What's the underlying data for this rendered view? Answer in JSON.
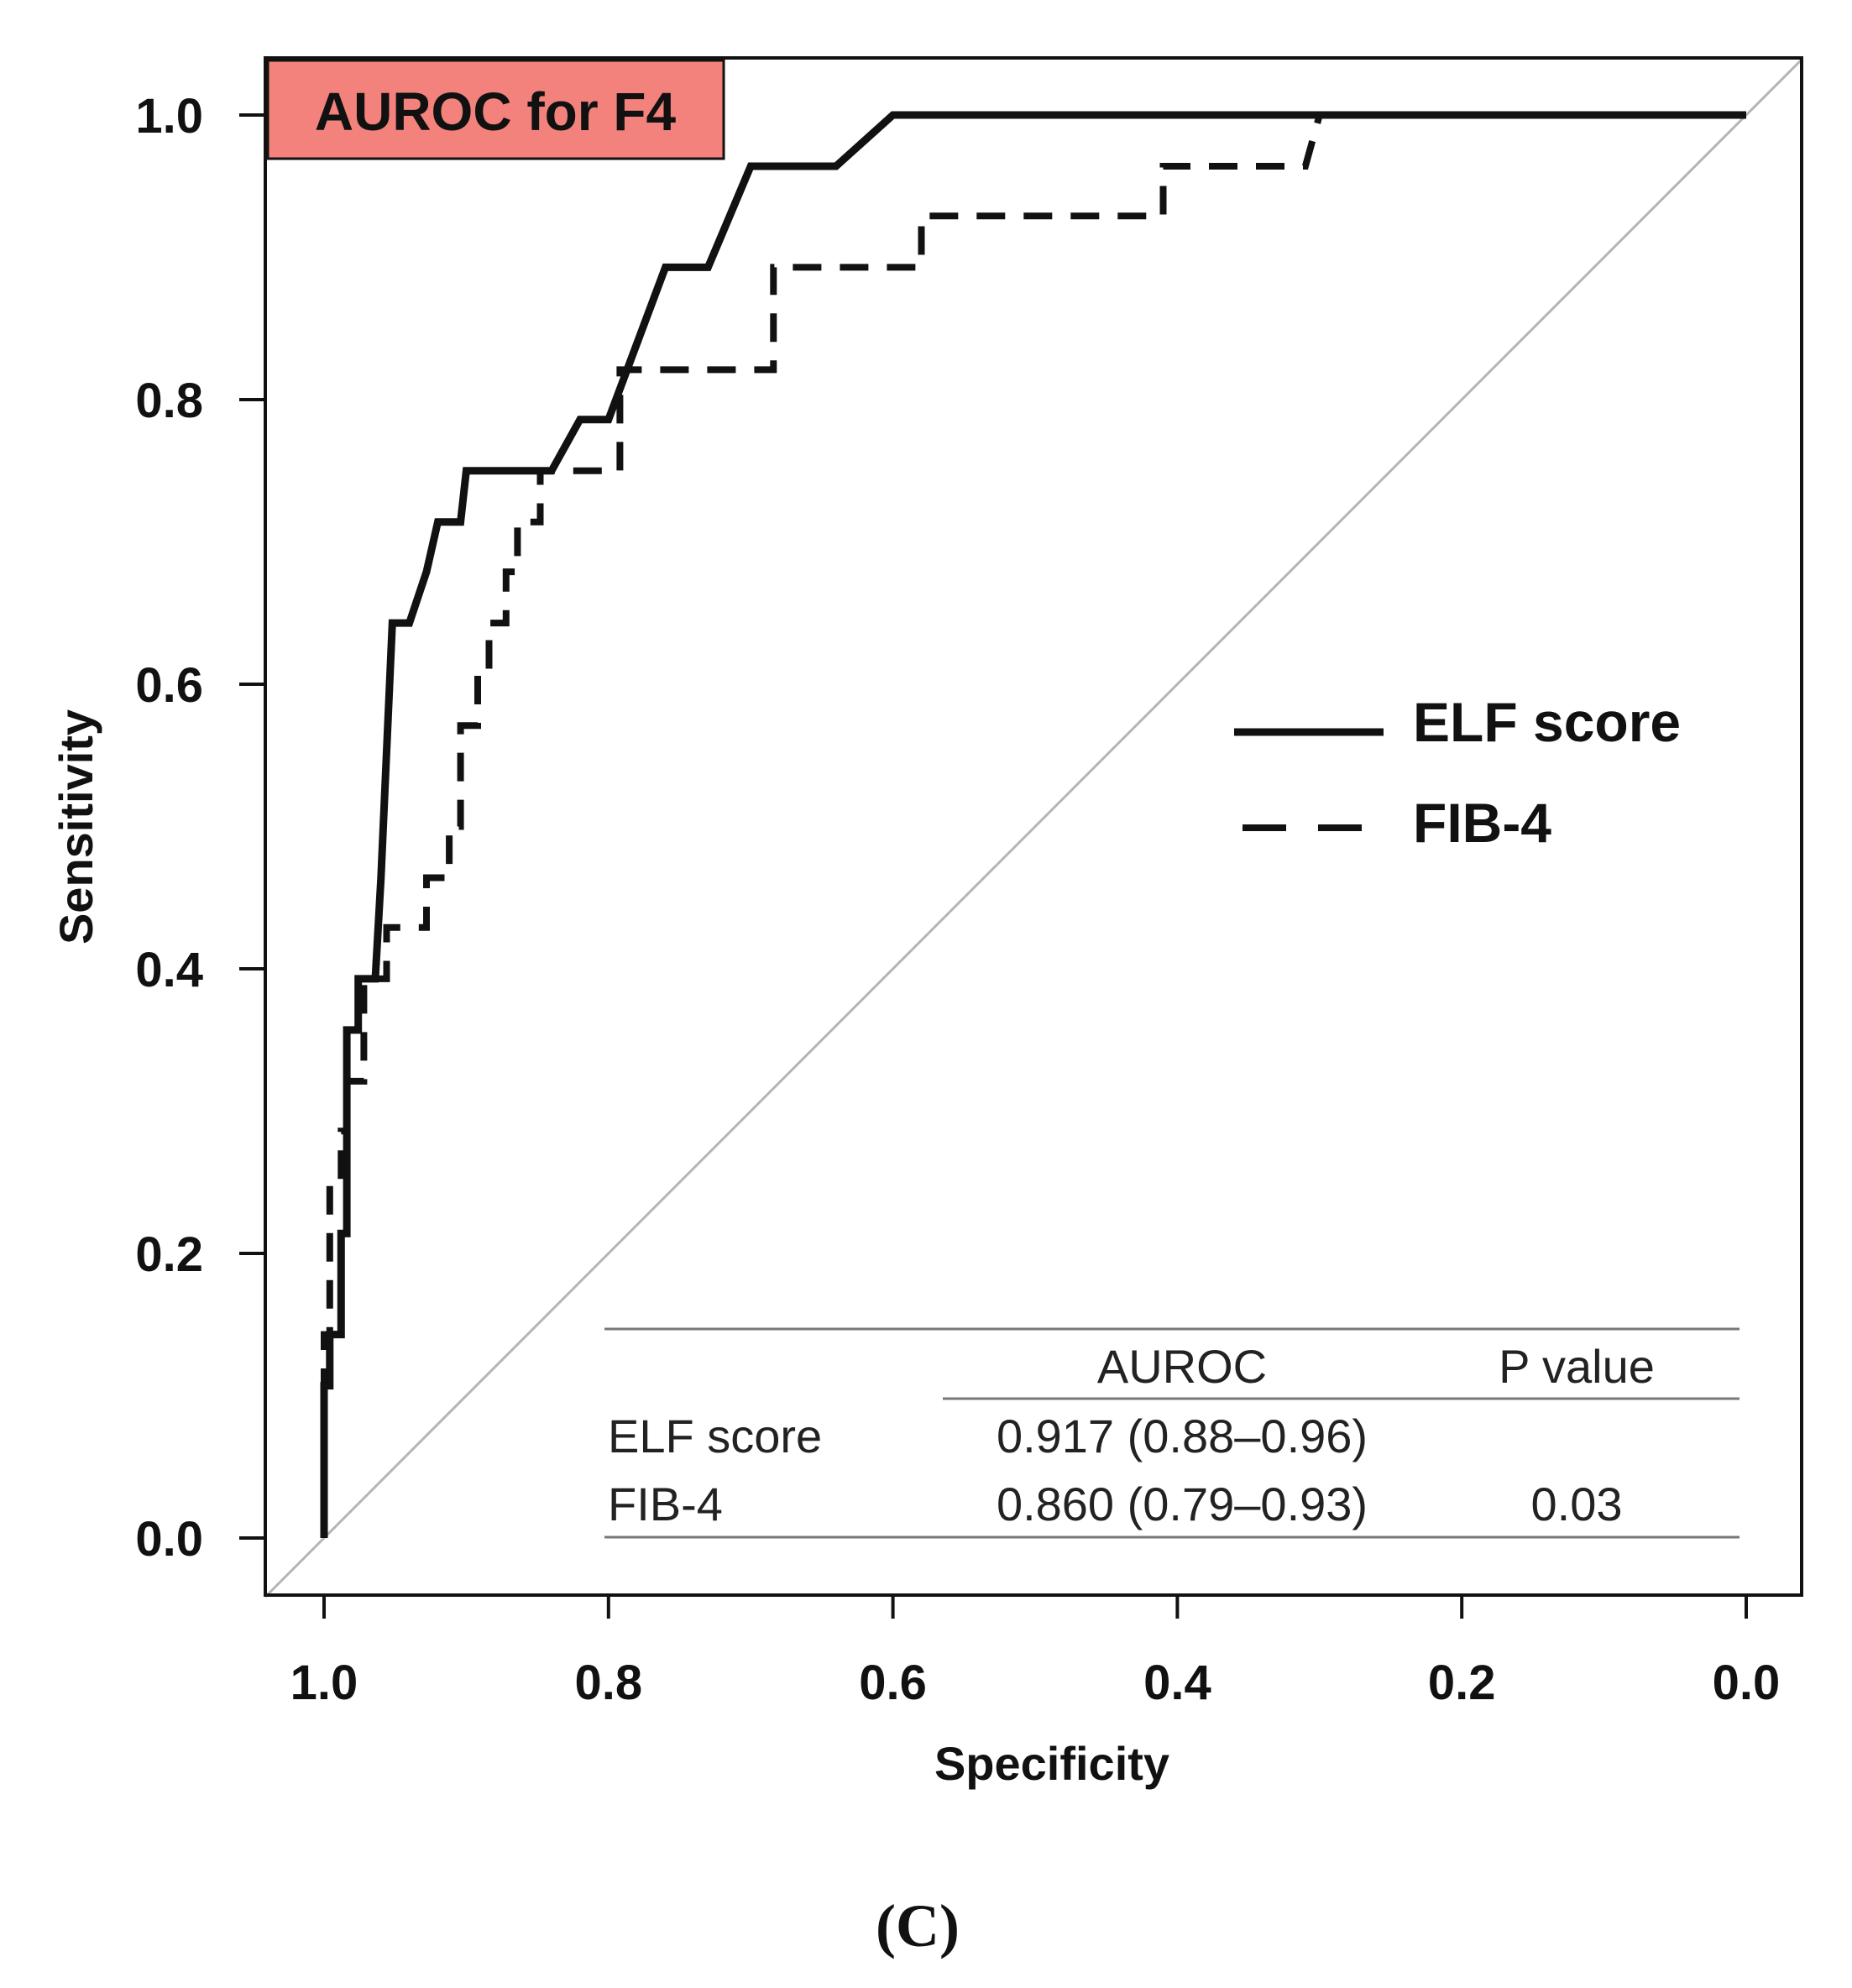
{
  "chart_data": {
    "type": "line",
    "title": "AUROC for F4",
    "xlabel": "Specificity",
    "ylabel": "Sensitivity",
    "xlim": [
      1.0,
      0.0
    ],
    "ylim": [
      0.0,
      1.0
    ],
    "x_ticks": [
      "1.0",
      "0.8",
      "0.6",
      "0.4",
      "0.2",
      "0.0"
    ],
    "y_ticks": [
      "0.0",
      "0.2",
      "0.4",
      "0.6",
      "0.8",
      "1.0"
    ],
    "reference_line": {
      "from": [
        1.0,
        0.0
      ],
      "to": [
        0.0,
        1.0
      ],
      "color": "#b5b5b5"
    },
    "series": [
      {
        "name": "ELF score",
        "style": "solid",
        "points": [
          [
            1.0,
            0.0
          ],
          [
            1.0,
            0.107
          ],
          [
            0.996,
            0.107
          ],
          [
            0.996,
            0.143
          ],
          [
            0.988,
            0.143
          ],
          [
            0.988,
            0.214
          ],
          [
            0.984,
            0.214
          ],
          [
            0.984,
            0.357
          ],
          [
            0.976,
            0.357
          ],
          [
            0.976,
            0.393
          ],
          [
            0.964,
            0.393
          ],
          [
            0.96,
            0.464
          ],
          [
            0.952,
            0.643
          ],
          [
            0.94,
            0.643
          ],
          [
            0.928,
            0.679
          ],
          [
            0.92,
            0.714
          ],
          [
            0.904,
            0.714
          ],
          [
            0.9,
            0.75
          ],
          [
            0.84,
            0.75
          ],
          [
            0.82,
            0.786
          ],
          [
            0.8,
            0.786
          ],
          [
            0.76,
            0.893
          ],
          [
            0.73,
            0.893
          ],
          [
            0.7,
            0.964
          ],
          [
            0.64,
            0.964
          ],
          [
            0.6,
            1.0
          ],
          [
            0.0,
            1.0
          ]
        ]
      },
      {
        "name": "FIB-4",
        "style": "dashed",
        "points": [
          [
            1.0,
            0.0
          ],
          [
            1.0,
            0.143
          ],
          [
            0.996,
            0.143
          ],
          [
            0.996,
            0.25
          ],
          [
            0.988,
            0.25
          ],
          [
            0.988,
            0.286
          ],
          [
            0.984,
            0.286
          ],
          [
            0.984,
            0.321
          ],
          [
            0.972,
            0.321
          ],
          [
            0.972,
            0.393
          ],
          [
            0.956,
            0.393
          ],
          [
            0.956,
            0.429
          ],
          [
            0.928,
            0.429
          ],
          [
            0.928,
            0.464
          ],
          [
            0.912,
            0.464
          ],
          [
            0.912,
            0.5
          ],
          [
            0.904,
            0.5
          ],
          [
            0.904,
            0.571
          ],
          [
            0.892,
            0.571
          ],
          [
            0.892,
            0.607
          ],
          [
            0.884,
            0.607
          ],
          [
            0.884,
            0.643
          ],
          [
            0.872,
            0.643
          ],
          [
            0.872,
            0.679
          ],
          [
            0.864,
            0.679
          ],
          [
            0.864,
            0.714
          ],
          [
            0.848,
            0.714
          ],
          [
            0.848,
            0.75
          ],
          [
            0.792,
            0.75
          ],
          [
            0.792,
            0.821
          ],
          [
            0.684,
            0.821
          ],
          [
            0.684,
            0.893
          ],
          [
            0.58,
            0.893
          ],
          [
            0.58,
            0.929
          ],
          [
            0.41,
            0.929
          ],
          [
            0.41,
            0.964
          ],
          [
            0.31,
            0.964
          ],
          [
            0.3,
            1.0
          ],
          [
            0.0,
            1.0
          ]
        ]
      }
    ],
    "legend": {
      "placement": "center-right",
      "entries": [
        "ELF score",
        "FIB-4"
      ]
    },
    "stats_table": {
      "headers": [
        "",
        "AUROC",
        "P value"
      ],
      "rows": [
        {
          "label": "ELF score",
          "auroc": "0.917 (0.88–0.96)",
          "p_value": ""
        },
        {
          "label": "FIB-4",
          "auroc": "0.860 (0.79–0.93)",
          "p_value": "0.03"
        }
      ]
    },
    "title_box_color": "#f4827c"
  },
  "caption": "(C)"
}
